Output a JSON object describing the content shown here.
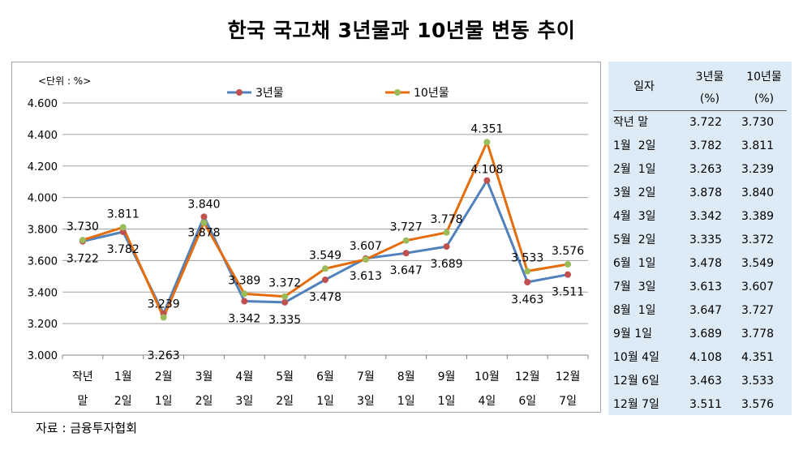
{
  "page": {
    "title": "한국 국고채 3년물과 10년물 변동 추이",
    "source": "자료 : 금융투자협회"
  },
  "chart_data": {
    "type": "line",
    "unit_label": "<단위 : %>",
    "categories": [
      [
        "작년",
        "말"
      ],
      [
        "1월",
        "2일"
      ],
      [
        "2월",
        "1일"
      ],
      [
        "3월",
        "2일"
      ],
      [
        "4월",
        "3일"
      ],
      [
        "5월",
        "2일"
      ],
      [
        "6월",
        "1일"
      ],
      [
        "7월",
        "3일"
      ],
      [
        "8월",
        "1일"
      ],
      [
        "9월",
        "1일"
      ],
      [
        "10월",
        "4일"
      ],
      [
        "12월",
        "6일"
      ],
      [
        "12월",
        "7일"
      ]
    ],
    "series": [
      {
        "name": "3년물",
        "line_color": "#4f81bd",
        "marker_color": "#c0504d",
        "values": [
          3.722,
          3.782,
          3.263,
          3.878,
          3.342,
          3.335,
          3.478,
          3.613,
          3.647,
          3.689,
          4.108,
          3.463,
          3.511
        ],
        "value_labels": [
          "3.722",
          "3.782",
          "3.263",
          "3.878",
          "3.342",
          "3.335",
          "3.478",
          "3.613",
          "3.647",
          "3.689",
          "4.108",
          "3.463",
          "3.511"
        ]
      },
      {
        "name": "10년물",
        "line_color": "#e46c0a",
        "marker_color": "#9bbb59",
        "values": [
          3.73,
          3.811,
          3.239,
          3.84,
          3.389,
          3.372,
          3.549,
          3.607,
          3.727,
          3.778,
          4.351,
          3.533,
          3.576
        ],
        "value_labels": [
          "3.730",
          "3.811",
          "3.239",
          "3.840",
          "3.389",
          "3.372",
          "3.549",
          "3.607",
          "3.727",
          "3.778",
          "4.351",
          "3.533",
          "3.576"
        ]
      }
    ],
    "y_ticks": [
      "3.000",
      "3.200",
      "3.400",
      "3.600",
      "3.800",
      "4.000",
      "4.200",
      "4.400",
      "4.600"
    ],
    "ylim": [
      3.0,
      4.6
    ],
    "grid": true,
    "legend": "top-center"
  },
  "table": {
    "headers": {
      "date": "일자",
      "y3": "3년물",
      "y3_unit": "(%)",
      "y10": "10년물",
      "y10_unit": "(%)"
    },
    "rows": [
      {
        "date": "작년 말",
        "y3": "3.722",
        "y10": "3.730"
      },
      {
        "date": "1월  2일",
        "y3": "3.782",
        "y10": "3.811"
      },
      {
        "date": "2월  1일",
        "y3": "3.263",
        "y10": "3.239"
      },
      {
        "date": "3월  2일",
        "y3": "3.878",
        "y10": "3.840"
      },
      {
        "date": "4월  3일",
        "y3": "3.342",
        "y10": "3.389"
      },
      {
        "date": "5월  2일",
        "y3": "3.335",
        "y10": "3.372"
      },
      {
        "date": "6월  1일",
        "y3": "3.478",
        "y10": "3.549"
      },
      {
        "date": "7월  3일",
        "y3": "3.613",
        "y10": "3.607"
      },
      {
        "date": "8월  1일",
        "y3": "3.647",
        "y10": "3.727"
      },
      {
        "date": "9월 1일",
        "y3": "3.689",
        "y10": "3.778"
      },
      {
        "date": "10월 4일",
        "y3": "4.108",
        "y10": "4.351"
      },
      {
        "date": "12월 6일",
        "y3": "3.463",
        "y10": "3.533"
      },
      {
        "date": "12월 7일",
        "y3": "3.511",
        "y10": "3.576"
      }
    ]
  }
}
